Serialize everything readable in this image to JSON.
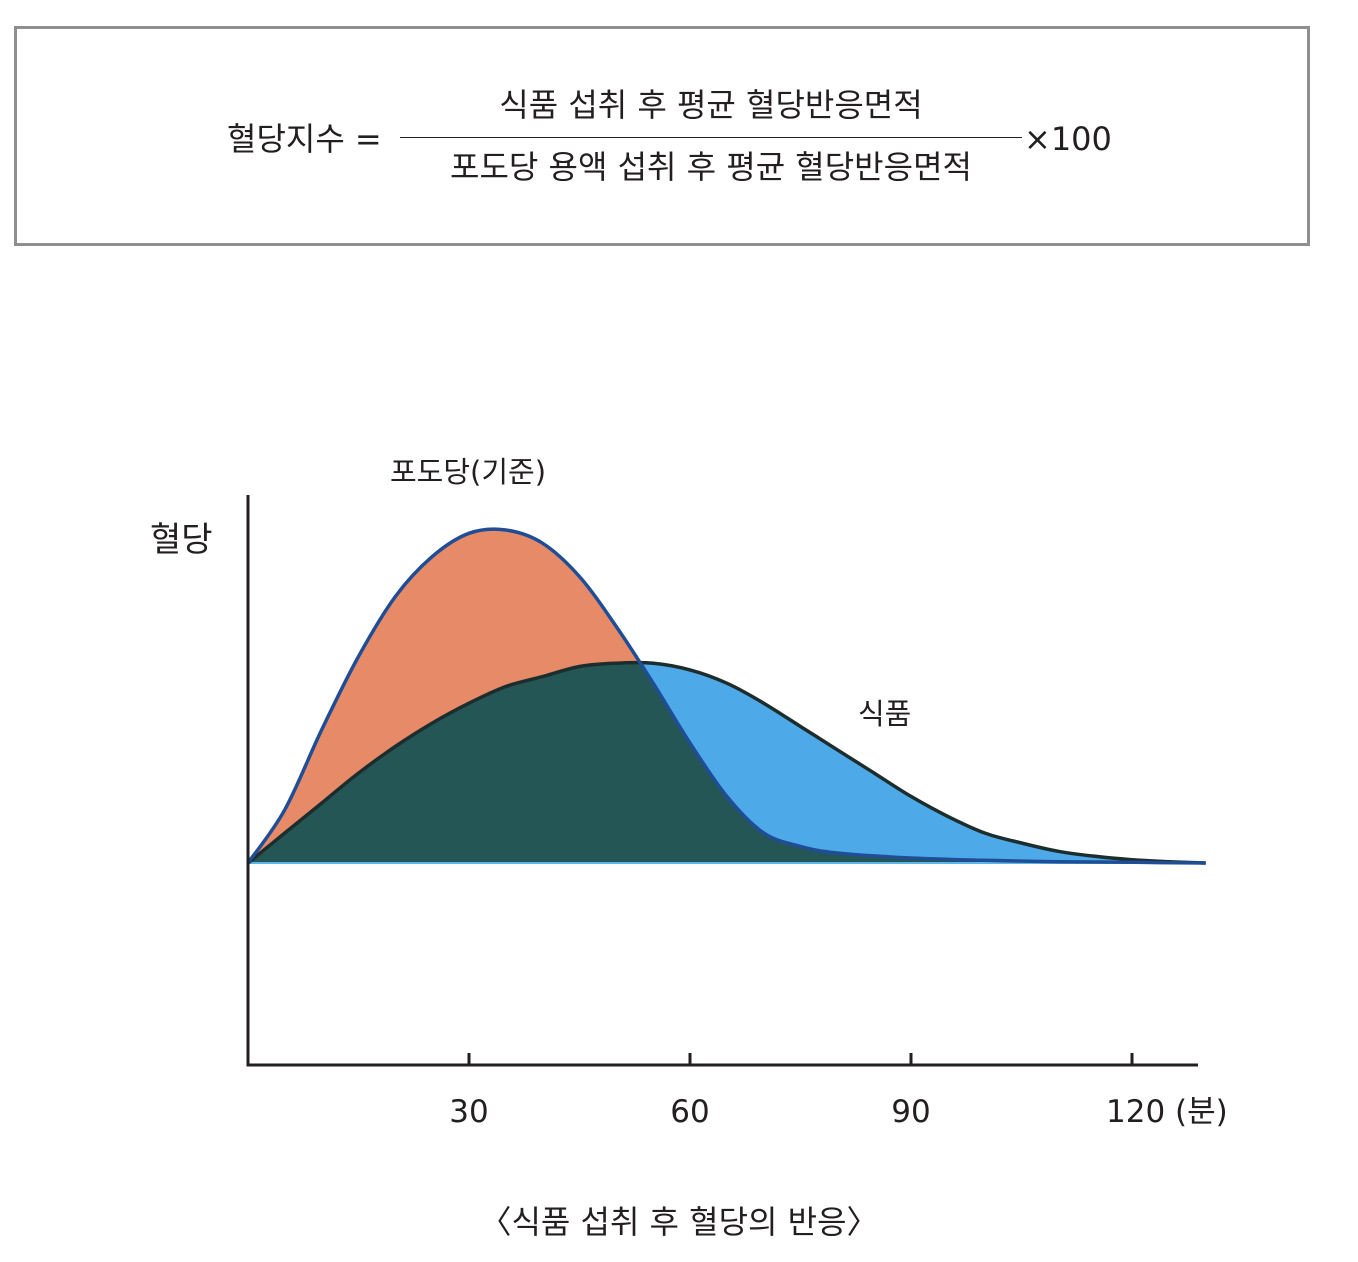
{
  "formula": {
    "lhs": "혈당지수 =",
    "numerator": "식품 섭취 후 평균 혈당반응면적",
    "denominator": "포도당 용액 섭취 후 평균 혈당반응면적",
    "multiplier": "×100"
  },
  "caption": "〈식품 섭취 후 혈당의 반응〉",
  "colors": {
    "glucose_fill": "#e68a67",
    "food_fill": "#4ea9e8",
    "overlap_fill": "#245656",
    "glucose_line": "#1f4e96",
    "food_line": "#1d2d2d",
    "axis": "#231f20"
  },
  "chart_data": {
    "type": "area",
    "ylabel": "혈당",
    "xlim": [
      0,
      130
    ],
    "ylim": [
      0,
      1
    ],
    "xticks": [
      30,
      60,
      90,
      120
    ],
    "xtick_labels": [
      "30",
      "60",
      "90",
      "120 (분)"
    ],
    "grid": false,
    "series": [
      {
        "name": "포도당(기준)",
        "x": [
          0,
          5,
          10,
          15,
          20,
          25,
          30,
          35,
          40,
          45,
          50,
          55,
          60,
          65,
          70,
          75,
          80,
          90,
          100,
          110,
          120,
          130
        ],
        "y": [
          0,
          0.16,
          0.4,
          0.62,
          0.8,
          0.92,
          0.99,
          1.0,
          0.96,
          0.86,
          0.71,
          0.54,
          0.36,
          0.2,
          0.09,
          0.05,
          0.03,
          0.015,
          0.008,
          0.004,
          0.002,
          0.0
        ]
      },
      {
        "name": "식품",
        "x": [
          0,
          5,
          10,
          15,
          20,
          25,
          30,
          35,
          40,
          45,
          50,
          55,
          60,
          65,
          70,
          75,
          80,
          85,
          90,
          95,
          100,
          105,
          110,
          115,
          120,
          125,
          130
        ],
        "y": [
          0,
          0.09,
          0.18,
          0.27,
          0.35,
          0.42,
          0.48,
          0.53,
          0.56,
          0.59,
          0.6,
          0.6,
          0.58,
          0.54,
          0.48,
          0.41,
          0.34,
          0.27,
          0.2,
          0.14,
          0.09,
          0.06,
          0.035,
          0.02,
          0.01,
          0.004,
          0.0
        ]
      }
    ]
  }
}
